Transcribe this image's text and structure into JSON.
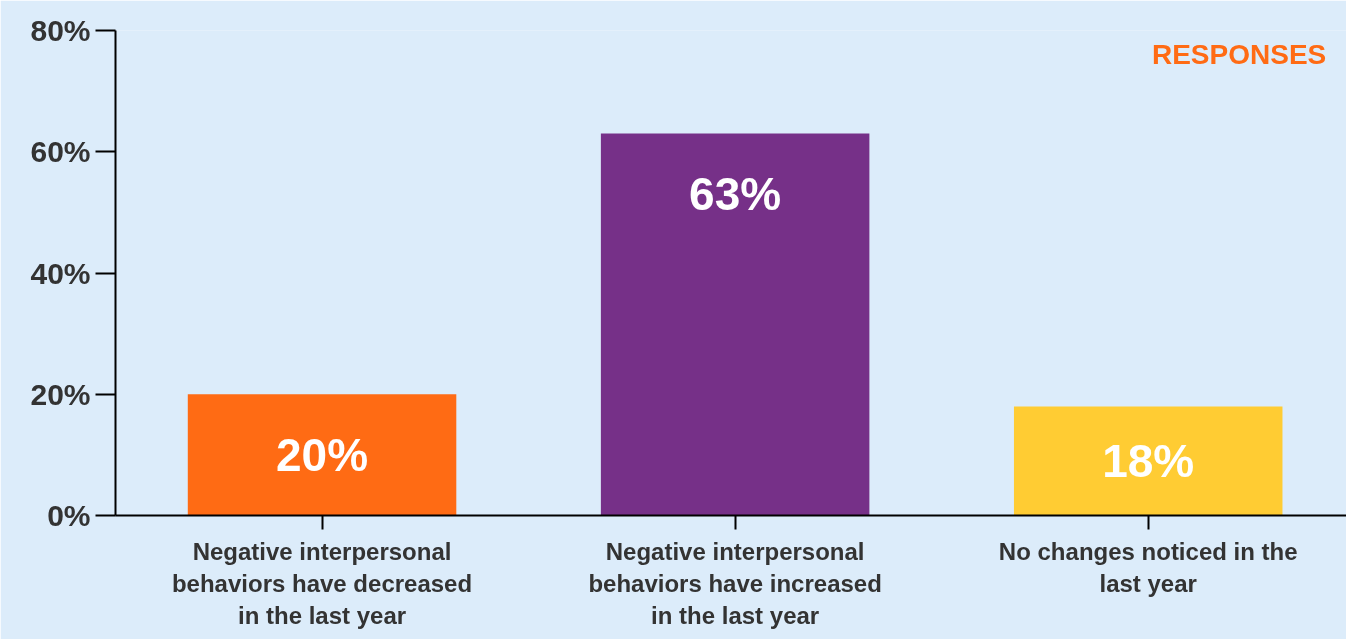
{
  "chart_data": {
    "type": "bar",
    "categories": [
      "Negative interpersonal behaviors have decreased in the last year",
      "Negative interpersonal behaviors have increased in the last year",
      "No changes noticed in the last year"
    ],
    "values": [
      20,
      63,
      18
    ],
    "colors": [
      "#ff6b14",
      "#763088",
      "#ffcc33"
    ],
    "value_labels": [
      "20%",
      "63%",
      "18%"
    ],
    "ylim": [
      0,
      80
    ],
    "yticks": [
      {
        "value": 0,
        "label": "0%"
      },
      {
        "value": 20,
        "label": "20%"
      },
      {
        "value": 40,
        "label": "40%"
      },
      {
        "value": 60,
        "label": "60%"
      },
      {
        "value": 80,
        "label": "80%"
      }
    ],
    "grid": false,
    "annotations": [
      "RESPONSES"
    ]
  }
}
